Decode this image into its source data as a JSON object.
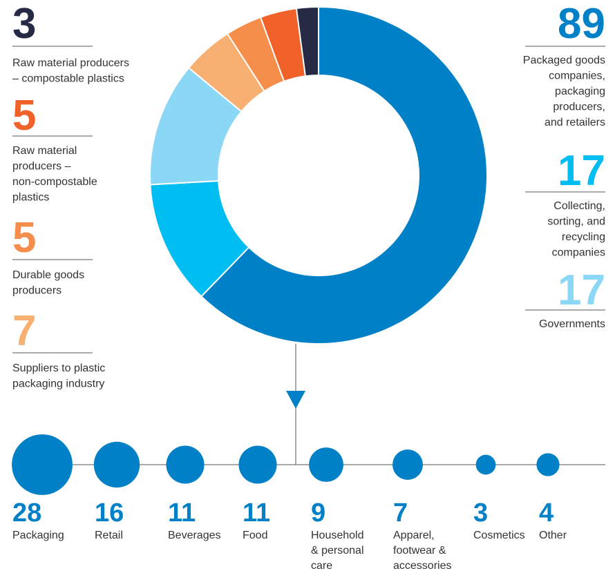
{
  "chart_data": [
    {
      "type": "donut",
      "categories": [
        "Packaged goods\ncompanies,\npackaging\nproducers,\nand retailers",
        "Collecting,\nsorting, and\nrecycling\ncompanies",
        "Governments",
        "Suppliers to plastic\npackaging industry",
        "Durable goods\nproducers",
        "Raw material\nproducers –\nnon-compostable\nplastics",
        "Raw material producers\n– compostable plastics"
      ],
      "values": [
        89,
        17,
        17,
        7,
        5,
        5,
        3
      ],
      "colors": [
        "#0080c6",
        "#00bdf2",
        "#8ad7f6",
        "#f7b072",
        "#f58d4b",
        "#f0622a",
        "#262a44"
      ]
    },
    {
      "type": "bubble",
      "categories": [
        "Packaging",
        "Retail",
        "Beverages",
        "Food",
        "Household\n& personal\ncare",
        "Apparel,\nfootwear &\naccessories",
        "Cosmetics",
        "Other"
      ],
      "values": [
        28,
        16,
        11,
        11,
        9,
        7,
        3,
        4
      ],
      "color": "#0080c6"
    }
  ]
}
